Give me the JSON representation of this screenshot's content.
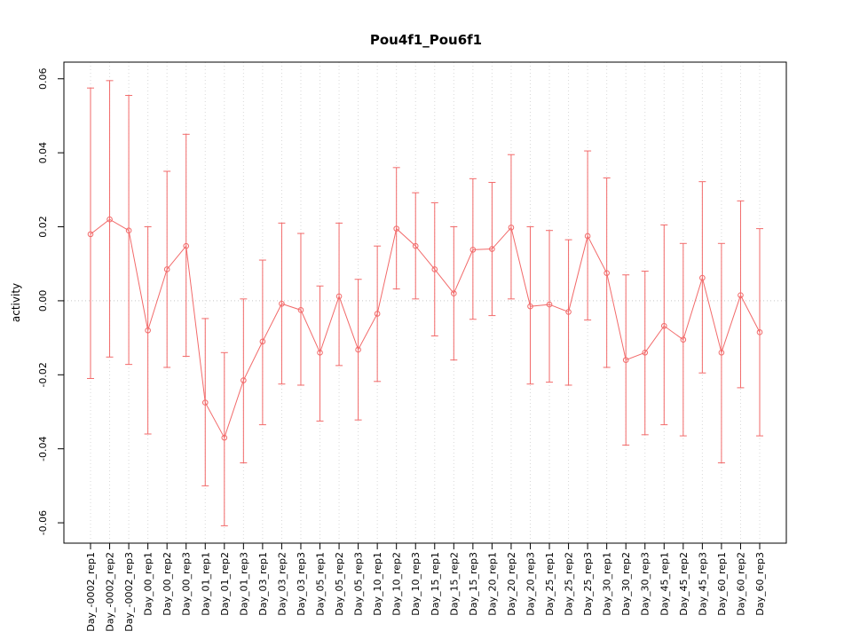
{
  "chart_data": {
    "type": "line",
    "title": "Pou4f1_Pou6f1",
    "xlabel": "",
    "ylabel": "activity",
    "ylim": [
      -0.0655,
      0.0645
    ],
    "yticks": [
      -0.06,
      -0.04,
      -0.02,
      0.0,
      0.02,
      0.04,
      0.06
    ],
    "grid": "vertical-dotted",
    "zero_line": true,
    "legend": "none",
    "marker": "open-circle",
    "series_color": "#f26a6a",
    "grid_color": "#d8d8d8",
    "zero_line_color": "#c8c8c8",
    "axis_color": "#000000",
    "categories": [
      "Day_-0002_rep1",
      "Day_-0002_rep2",
      "Day_-0002_rep3",
      "Day_00_rep1",
      "Day_00_rep2",
      "Day_00_rep3",
      "Day_01_rep1",
      "Day_01_rep2",
      "Day_01_rep3",
      "Day_03_rep1",
      "Day_03_rep2",
      "Day_03_rep3",
      "Day_05_rep1",
      "Day_05_rep2",
      "Day_05_rep3",
      "Day_10_rep1",
      "Day_10_rep2",
      "Day_10_rep3",
      "Day_15_rep1",
      "Day_15_rep2",
      "Day_15_rep3",
      "Day_20_rep1",
      "Day_20_rep2",
      "Day_20_rep3",
      "Day_25_rep1",
      "Day_25_rep2",
      "Day_25_rep3",
      "Day_30_rep1",
      "Day_30_rep2",
      "Day_30_rep3",
      "Day_45_rep1",
      "Day_45_rep2",
      "Day_45_rep3",
      "Day_60_rep1",
      "Day_60_rep2",
      "Day_60_rep3"
    ],
    "values": [
      0.018,
      0.022,
      0.019,
      -0.008,
      0.0085,
      0.0148,
      -0.0275,
      -0.037,
      -0.0215,
      -0.011,
      -0.0008,
      -0.0025,
      -0.014,
      0.0012,
      -0.0132,
      -0.0035,
      0.0195,
      0.0148,
      0.0085,
      0.002,
      0.0138,
      0.014,
      0.0198,
      -0.0015,
      -0.001,
      -0.003,
      0.0175,
      0.0075,
      -0.016,
      -0.014,
      -0.0068,
      -0.0105,
      0.0062,
      -0.014,
      0.0015,
      -0.0085
    ],
    "error_low": [
      -0.021,
      -0.0152,
      -0.0172,
      -0.036,
      -0.018,
      -0.015,
      -0.05,
      -0.0608,
      -0.0438,
      -0.0335,
      -0.0225,
      -0.0228,
      -0.0325,
      -0.0175,
      -0.0322,
      -0.0218,
      0.0032,
      0.0005,
      -0.0095,
      -0.016,
      -0.005,
      -0.004,
      0.0005,
      -0.0225,
      -0.022,
      -0.0228,
      -0.0052,
      -0.018,
      -0.039,
      -0.0362,
      -0.0335,
      -0.0365,
      -0.0195,
      -0.0438,
      -0.0235,
      -0.0365
    ],
    "error_high": [
      0.0575,
      0.0595,
      0.0555,
      0.02,
      0.035,
      0.045,
      -0.0048,
      -0.014,
      0.0005,
      0.011,
      0.021,
      0.0182,
      0.004,
      0.021,
      0.0058,
      0.0148,
      0.036,
      0.0292,
      0.0265,
      0.02,
      0.033,
      0.032,
      0.0395,
      0.02,
      0.019,
      0.0165,
      0.0405,
      0.0332,
      0.007,
      0.008,
      0.0205,
      0.0155,
      0.0322,
      0.0155,
      0.027,
      0.0195
    ]
  }
}
